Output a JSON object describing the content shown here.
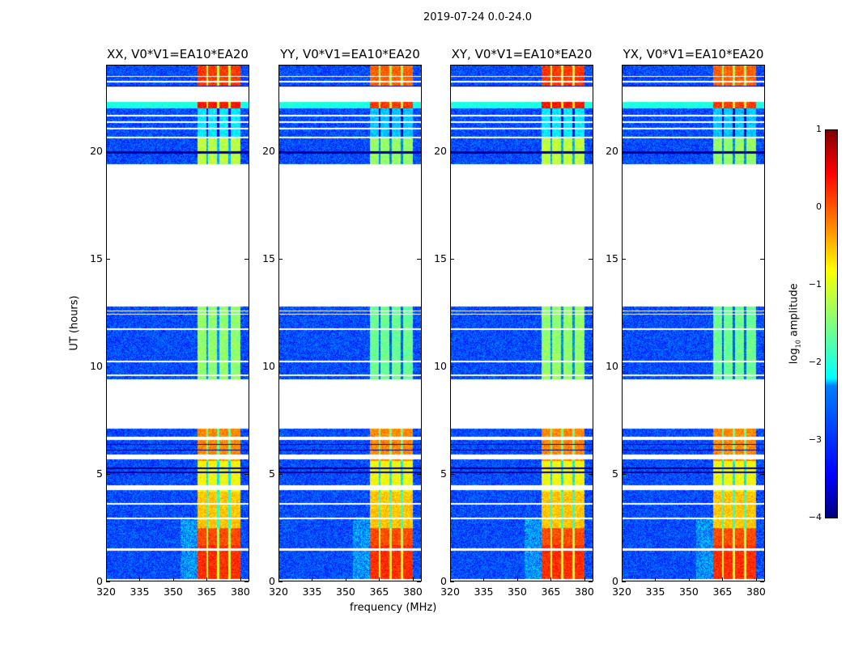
{
  "chart_data": {
    "type": "heatmap",
    "title": "2019-07-24 0.0-24.0",
    "xlabel": "frequency (MHz)",
    "ylabel": "UT (hours)",
    "xlim": [
      320,
      384
    ],
    "ylim": [
      0,
      24
    ],
    "xticks": [
      "320",
      "335",
      "350",
      "365",
      "380"
    ],
    "yticks": [
      "0",
      "5",
      "10",
      "15",
      "20"
    ],
    "panels": [
      {
        "title": "XX, V0*V1=EA10*EA20"
      },
      {
        "title": "YY, V0*V1=EA10*EA20"
      },
      {
        "title": "XY, V0*V1=EA10*EA20"
      },
      {
        "title": "YX, V0*V1=EA10*EA20"
      }
    ],
    "data_gaps_hours": [
      [
        7.1,
        9.4
      ],
      [
        12.8,
        19.4
      ],
      [
        22.3,
        23.0
      ]
    ],
    "bright_band_mhz": [
      360.5,
      380
    ],
    "colorbar": {
      "label": "log10 amplitude",
      "label_main": "log",
      "label_sub": "10",
      "label_rest": " amplitude",
      "range": [
        -4,
        1
      ],
      "ticks": [
        "1",
        "0",
        "−1",
        "−2",
        "−3",
        "−4"
      ],
      "colormap": "jet"
    }
  }
}
